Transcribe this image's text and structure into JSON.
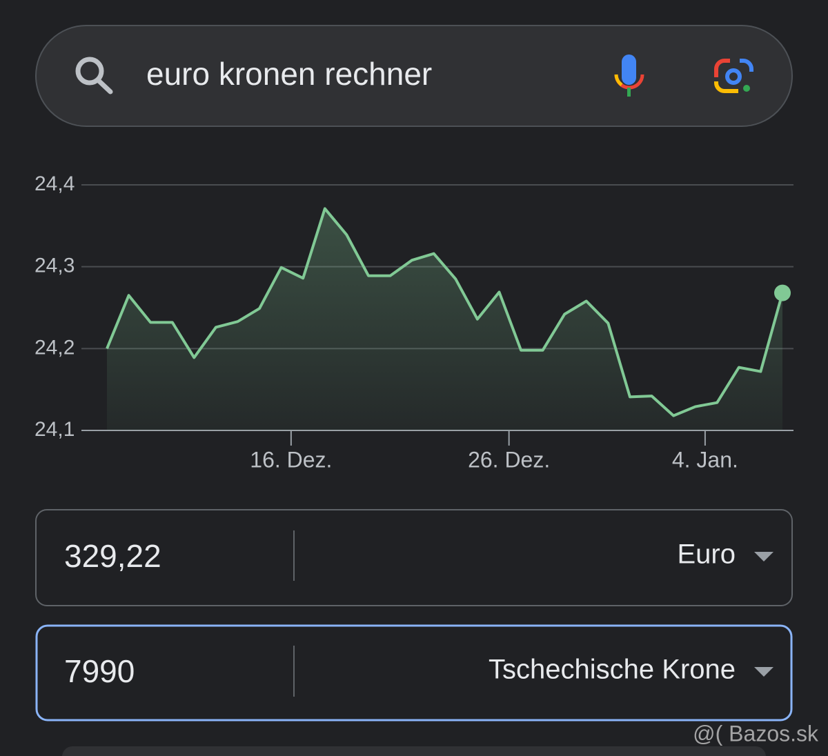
{
  "search": {
    "query": "euro kronen rechner"
  },
  "chart_data": {
    "type": "area",
    "x": [
      0,
      1,
      2,
      3,
      4,
      5,
      6,
      7,
      8,
      9,
      10,
      11,
      12,
      13,
      14,
      15,
      16,
      17,
      18,
      19,
      20,
      21,
      22,
      23,
      24,
      25,
      26,
      27,
      28,
      29,
      30,
      31
    ],
    "values": [
      24.2,
      24.265,
      24.232,
      24.232,
      24.189,
      24.226,
      24.233,
      24.249,
      24.299,
      24.286,
      24.371,
      24.339,
      24.289,
      24.289,
      24.308,
      24.316,
      24.285,
      24.236,
      24.269,
      24.198,
      24.198,
      24.242,
      24.258,
      24.231,
      24.141,
      24.142,
      24.118,
      24.129,
      24.134,
      24.177,
      24.172,
      24.268
    ],
    "color": "#81c995",
    "xlim": [
      0,
      31
    ],
    "xticks": [
      {
        "value": 8.45,
        "label": "16. Dez."
      },
      {
        "value": 18.45,
        "label": "26. Dez."
      },
      {
        "value": 27.45,
        "label": "4. Jan."
      }
    ],
    "ylim": [
      24.1,
      24.4
    ],
    "yticks": [
      {
        "value": 24.1,
        "label": "24,1"
      },
      {
        "value": 24.2,
        "label": "24,2"
      },
      {
        "value": 24.3,
        "label": "24,3"
      },
      {
        "value": 24.4,
        "label": "24,4"
      }
    ],
    "grid": true
  },
  "converter": {
    "from": {
      "amount": "329,22",
      "currency": "Euro"
    },
    "to": {
      "amount": "7990",
      "currency": "Tschechische Krone"
    }
  },
  "watermark": "@( Bazos.sk"
}
